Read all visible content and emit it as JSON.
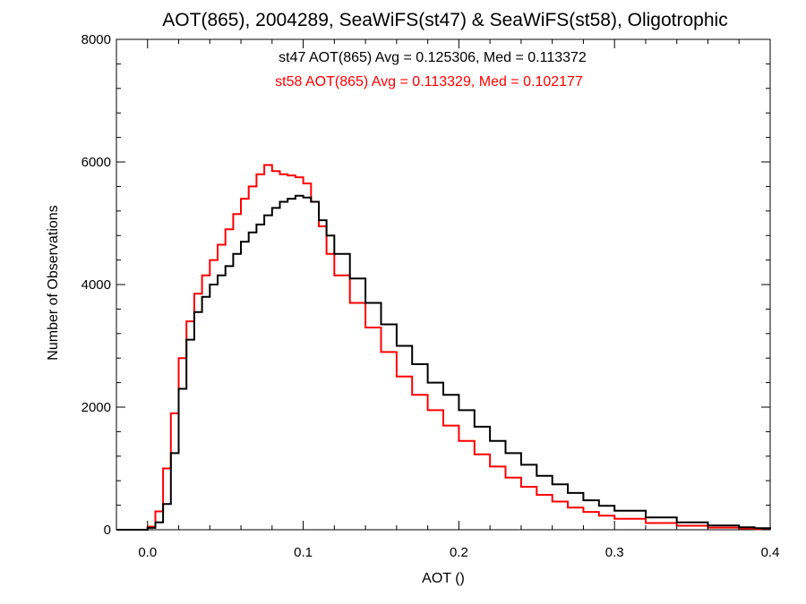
{
  "chart_data": {
    "type": "line",
    "title": "AOT(865), 2004289, SeaWiFS(st47) & SeaWiFS(st58), Oligotrophic",
    "xlabel": "AOT ()",
    "ylabel": "Number of Observations",
    "xlim": [
      -0.02,
      0.4
    ],
    "ylim": [
      0,
      8000
    ],
    "x_ticks": [
      0.0,
      0.1,
      0.2,
      0.3,
      0.4
    ],
    "x_tick_labels": [
      "0.0",
      "0.1",
      "0.2",
      "0.3",
      "0.4"
    ],
    "y_ticks": [
      0,
      2000,
      4000,
      6000,
      8000
    ],
    "y_tick_labels": [
      "0",
      "2000",
      "4000",
      "6000",
      "8000"
    ],
    "grid": false,
    "step": true,
    "annotations": [
      {
        "text": "st47 AOT(865) Avg = 0.125306, Med = 0.113372",
        "color": "#000000"
      },
      {
        "text": "st58 AOT(865) Avg = 0.113329, Med = 0.102177",
        "color": "#ff0000"
      }
    ],
    "series": [
      {
        "color": "#000000",
        "x": [
          -0.02,
          0.0,
          0.005,
          0.01,
          0.015,
          0.02,
          0.025,
          0.03,
          0.035,
          0.04,
          0.045,
          0.05,
          0.055,
          0.06,
          0.065,
          0.07,
          0.075,
          0.08,
          0.085,
          0.09,
          0.095,
          0.1,
          0.105,
          0.11,
          0.115,
          0.12,
          0.13,
          0.14,
          0.15,
          0.16,
          0.17,
          0.18,
          0.19,
          0.2,
          0.21,
          0.22,
          0.23,
          0.24,
          0.25,
          0.26,
          0.27,
          0.28,
          0.29,
          0.3,
          0.32,
          0.34,
          0.36,
          0.38,
          0.39,
          0.4
        ],
        "y": [
          0,
          30,
          120,
          420,
          1250,
          2300,
          3100,
          3550,
          3800,
          4000,
          4150,
          4300,
          4500,
          4700,
          4850,
          4980,
          5130,
          5250,
          5350,
          5400,
          5450,
          5420,
          5350,
          5050,
          4800,
          4500,
          4100,
          3700,
          3350,
          3000,
          2700,
          2400,
          2200,
          1950,
          1680,
          1450,
          1250,
          1060,
          880,
          740,
          600,
          480,
          390,
          310,
          200,
          120,
          70,
          40,
          25,
          10
        ]
      },
      {
        "color": "#ff0000",
        "x": [
          -0.02,
          0.0,
          0.005,
          0.01,
          0.015,
          0.02,
          0.025,
          0.03,
          0.035,
          0.04,
          0.045,
          0.05,
          0.055,
          0.06,
          0.065,
          0.07,
          0.075,
          0.08,
          0.085,
          0.09,
          0.095,
          0.1,
          0.105,
          0.11,
          0.115,
          0.12,
          0.13,
          0.14,
          0.15,
          0.16,
          0.17,
          0.18,
          0.19,
          0.2,
          0.21,
          0.22,
          0.23,
          0.24,
          0.25,
          0.26,
          0.27,
          0.28,
          0.29,
          0.3,
          0.32,
          0.34,
          0.36,
          0.38,
          0.39,
          0.4
        ],
        "y": [
          0,
          50,
          300,
          1000,
          1900,
          2800,
          3400,
          3850,
          4150,
          4400,
          4650,
          4900,
          5150,
          5400,
          5600,
          5800,
          5950,
          5850,
          5800,
          5780,
          5750,
          5650,
          5350,
          4950,
          4500,
          4150,
          3700,
          3300,
          2900,
          2500,
          2200,
          1950,
          1700,
          1450,
          1230,
          1030,
          850,
          700,
          570,
          460,
          360,
          290,
          230,
          180,
          110,
          65,
          35,
          20,
          10,
          5
        ]
      }
    ]
  }
}
